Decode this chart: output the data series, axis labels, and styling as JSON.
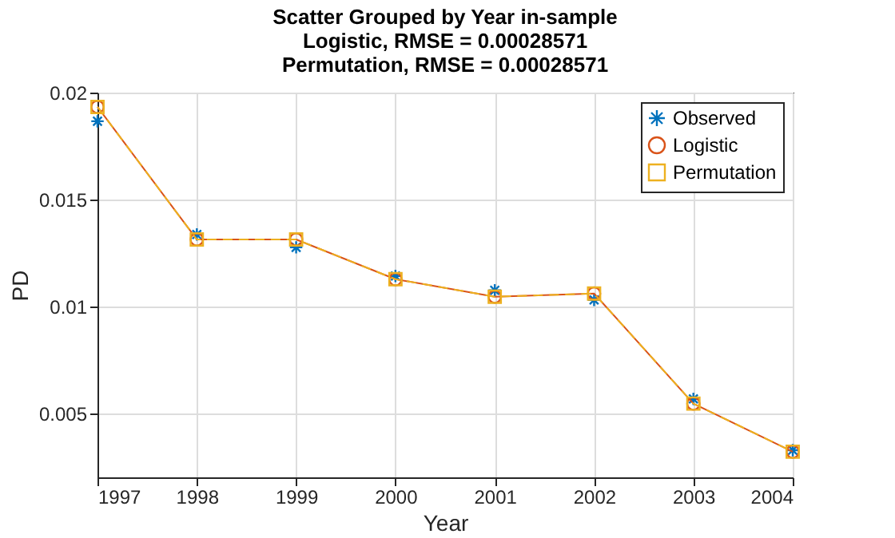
{
  "chart_data": {
    "type": "line",
    "title": [
      "Scatter Grouped by Year in-sample",
      "Logistic, RMSE = 0.00028571",
      "Permutation, RMSE = 0.00028571"
    ],
    "xlabel": "Year",
    "ylabel": "PD",
    "x": [
      1997,
      1998,
      1999,
      2000,
      2001,
      2002,
      2003,
      2004
    ],
    "series": [
      {
        "name": "Observed",
        "type": "scatter",
        "marker": "cross",
        "color": "#0072bd",
        "values": [
          0.01866,
          0.01336,
          0.01276,
          0.01142,
          0.01075,
          0.0103,
          0.00567,
          0.00327
        ]
      },
      {
        "name": "Logistic",
        "marker": "circle",
        "line_style": "solid",
        "color": "#d95319",
        "values": [
          0.01933,
          0.01313,
          0.01313,
          0.01127,
          0.01045,
          0.0106,
          0.00545,
          0.0032
        ]
      },
      {
        "name": "Permutation",
        "marker": "square",
        "line_style": "dashed",
        "color": "#edb120",
        "values": [
          0.01933,
          0.01313,
          0.01313,
          0.01127,
          0.01045,
          0.0106,
          0.00545,
          0.0032
        ]
      }
    ],
    "xlim": [
      1997,
      2004
    ],
    "xticks": [
      1997,
      1998,
      1999,
      2000,
      2001,
      2002,
      2003,
      2004
    ],
    "ylim": [
      0.002,
      0.02
    ],
    "yticks": [
      0.005,
      0.01,
      0.015,
      0.02
    ],
    "grid": true,
    "legend": "top right"
  }
}
